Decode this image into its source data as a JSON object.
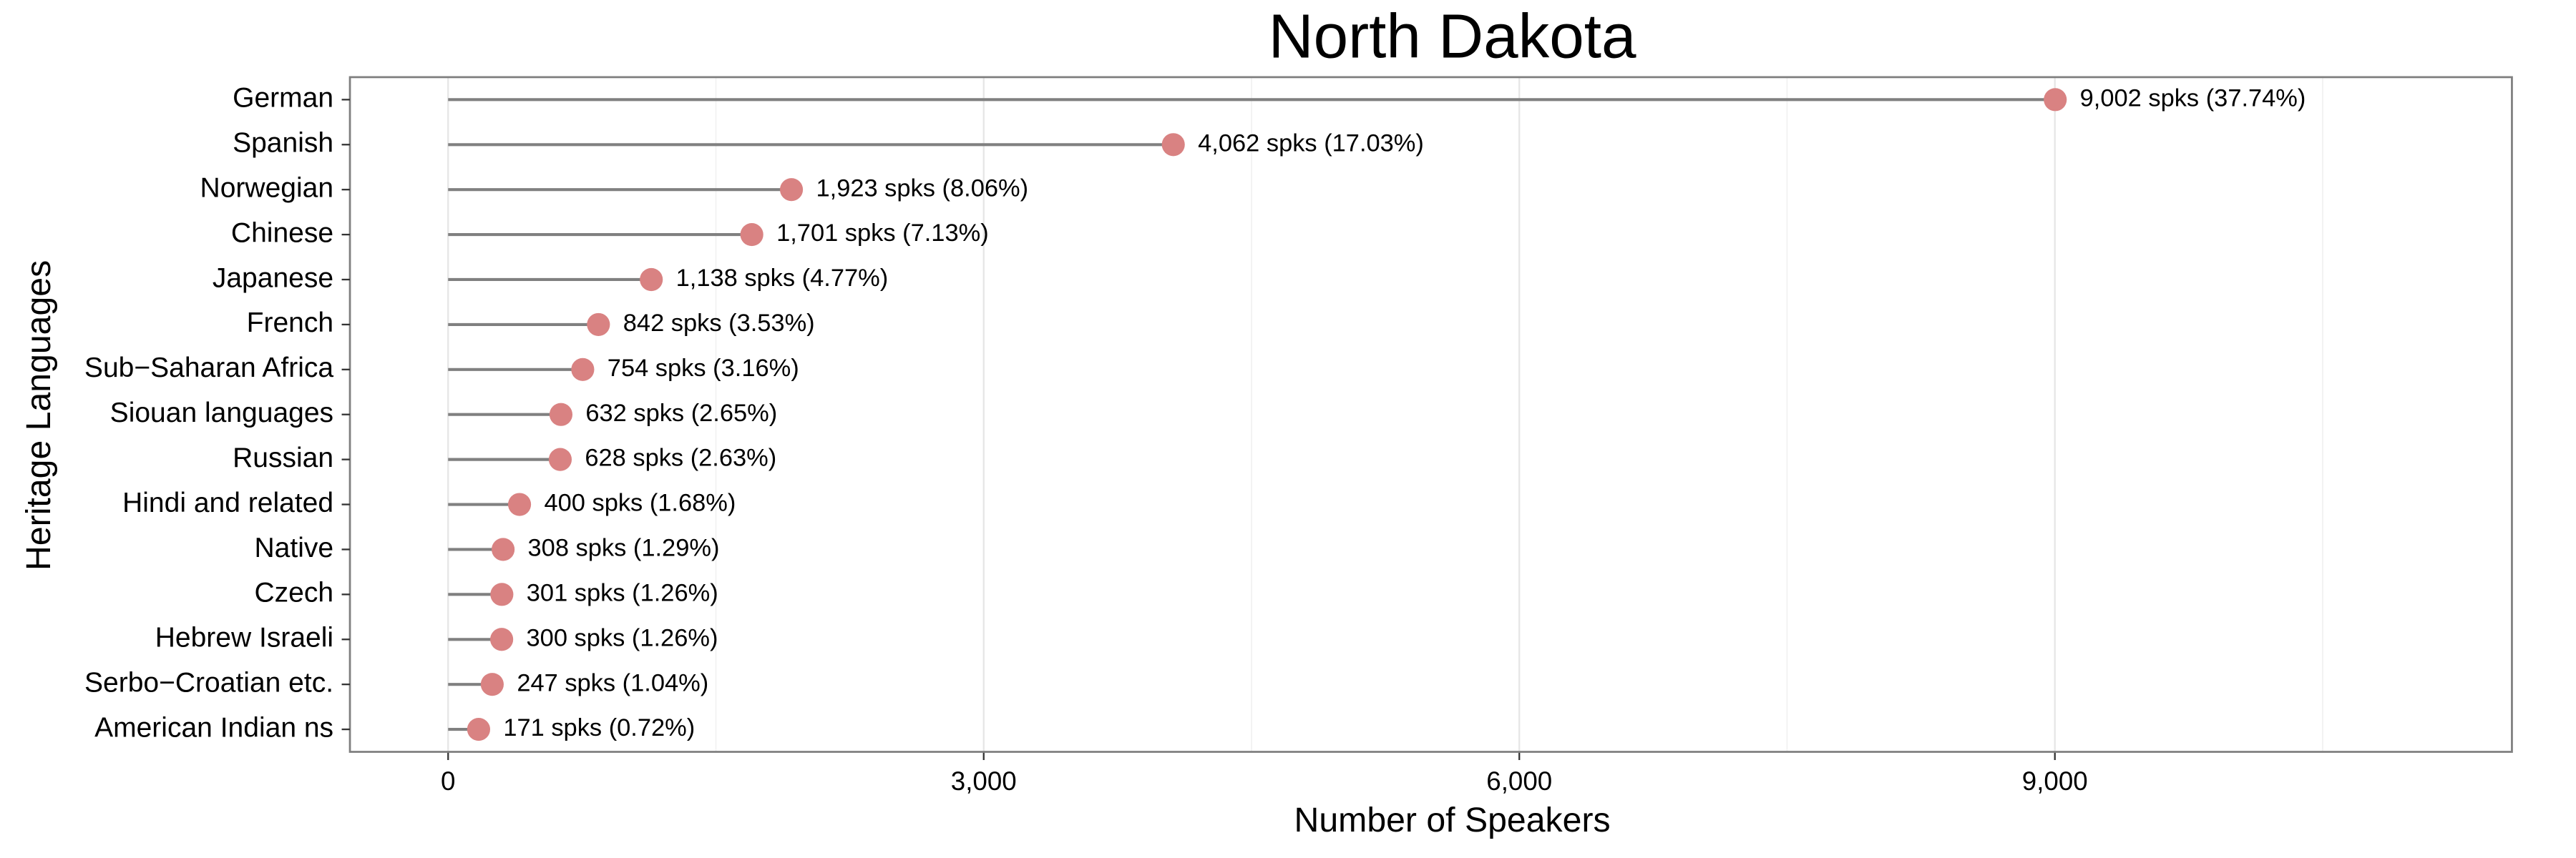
{
  "chart_data": {
    "type": "lollipop",
    "title": "North Dakota",
    "x_label": "Number of Speakers",
    "y_label": "Heritage Languages",
    "categories": [
      "German",
      "Spanish",
      "Norwegian",
      "Chinese",
      "Japanese",
      "French",
      "Sub−Saharan Africa",
      "Siouan languages",
      "Russian",
      "Hindi and related",
      "Native",
      "Czech",
      "Hebrew Israeli",
      "Serbo−Croatian etc.",
      "American Indian ns"
    ],
    "values": [
      9002,
      4062,
      1923,
      1701,
      1138,
      842,
      754,
      632,
      628,
      400,
      308,
      301,
      300,
      247,
      171
    ],
    "value_labels": [
      "9,002 spks (37.74%)",
      "4,062 spks (17.03%)",
      "1,923 spks (8.06%)",
      "1,701 spks (7.13%)",
      "1,138 spks (4.77%)",
      "842 spks (3.53%)",
      "754 spks (3.16%)",
      "632 spks (2.65%)",
      "628 spks (2.63%)",
      "400 spks (1.68%)",
      "308 spks (1.29%)",
      "301 spks (1.26%)",
      "300 spks (1.26%)",
      "247 spks (1.04%)",
      "171 spks (0.72%)"
    ],
    "color": "#d98282",
    "stem_color": "#808080",
    "xlim": [
      -550,
      11560
    ],
    "xticks": [
      0,
      {
        "value": 3000,
        "label": "3,000"
      },
      {
        "value": 6000,
        "label": "6,000"
      },
      {
        "value": 9000,
        "label": "9,000"
      }
    ],
    "minor_xticks": [
      1500,
      4500,
      7500,
      10500
    ],
    "grid": true
  }
}
